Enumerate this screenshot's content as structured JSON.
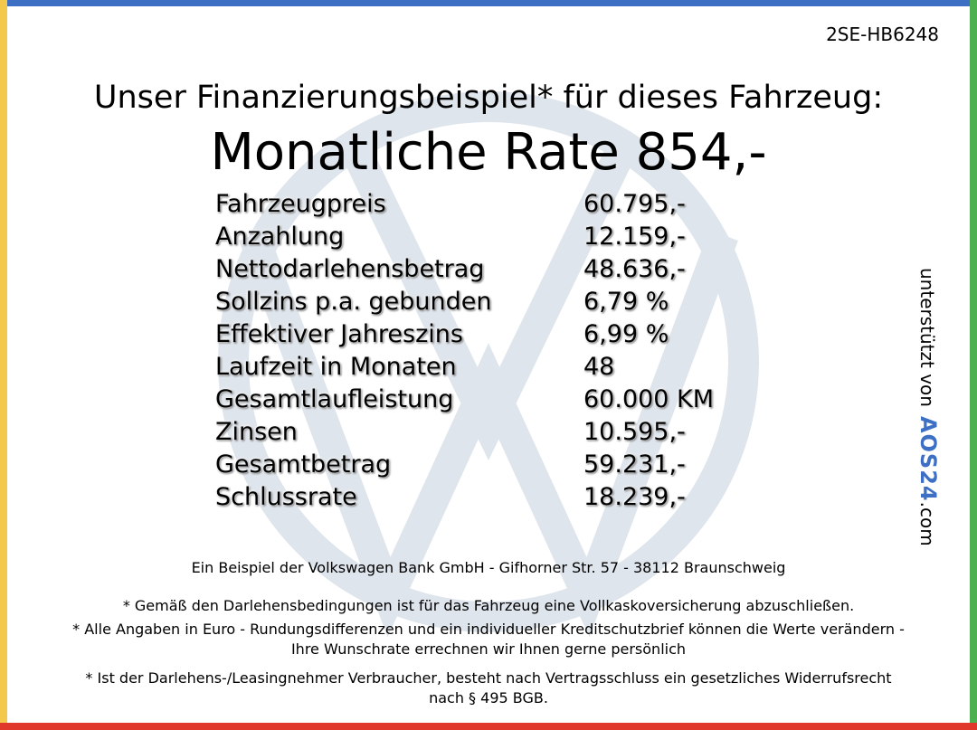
{
  "code": "2SE-HB6248",
  "heading": "Unser Finanzierungsbeispiel* für dieses Fahrzeug:",
  "rate": "Monatliche Rate 854,-",
  "rows": [
    [
      "Fahrzeugpreis",
      "60.795,-"
    ],
    [
      "Anzahlung",
      "12.159,-"
    ],
    [
      "Nettodarlehensbetrag",
      "48.636,-"
    ],
    [
      "Sollzins p.a. gebunden",
      "6,79 %"
    ],
    [
      "Effektiver Jahreszins",
      "6,99 %"
    ],
    [
      "Laufzeit in Monaten",
      "48"
    ],
    [
      "Gesamtlaufleistung",
      "60.000 KM"
    ],
    [
      "Zinsen",
      "10.595,-"
    ],
    [
      "Gesamtbetrag",
      "59.231,-"
    ],
    [
      "Schlussrate",
      "18.239,-"
    ]
  ],
  "lender": "Ein Beispiel der Volkswagen Bank GmbH - Gifhorner Str. 57 - 38112 Braunschweig",
  "notes": [
    "* Gemäß den Darlehensbedingungen ist für das Fahrzeug eine Vollkaskoversicherung abzuschließen.",
    "* Alle Angaben in Euro - Rundungsdifferenzen und ein individueller Kreditschutzbrief können die Werte verändern - Ihre Wunschrate errechnen wir Ihnen gerne persönlich",
    "* Ist der Darlehens-/Leasingnehmer Verbraucher, besteht nach Vertragsschluss ein gesetzliches Widerrufsrecht nach § 495 BGB."
  ],
  "side": {
    "text": "unterstützt von",
    "logo": "AOS24",
    "domain": ".com"
  }
}
